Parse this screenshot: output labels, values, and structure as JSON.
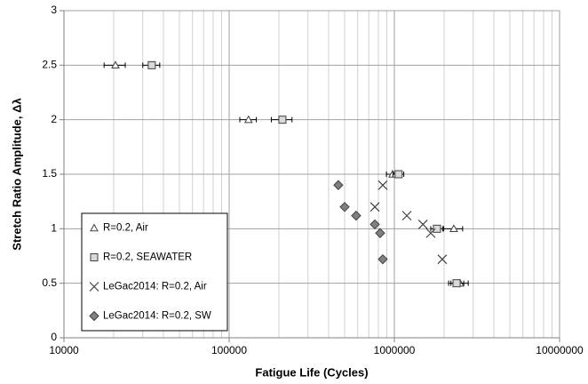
{
  "chart_data": {
    "type": "scatter",
    "x_label": "Fatigue Life (Cycles)",
    "y_label": "Stretch Ratio Amplitude, Δλ",
    "xscale": "log",
    "xlim": [
      10000,
      10000000
    ],
    "xticks": [
      10000,
      100000,
      1000000,
      10000000
    ],
    "ylim": [
      0,
      3
    ],
    "yticks": [
      0,
      0.5,
      1,
      1.5,
      2,
      2.5,
      3
    ],
    "grid": true,
    "minor_grid": true,
    "legend": "lower left",
    "series": [
      {
        "name": "R=0.2, Air",
        "marker": "triangle",
        "color": "#404040",
        "x": [
          20500,
          131000,
          975000,
          2290000,
          2500000
        ],
        "values": [
          2.5,
          2,
          1.5,
          1,
          0.5
        ],
        "xerr": [
          3000,
          15000,
          80000,
          300000,
          300000
        ]
      },
      {
        "name": "R=0.2, SEAWATER",
        "marker": "square",
        "color": "#404040",
        "x": [
          34000,
          210000,
          1060000,
          1810000,
          2380000
        ],
        "values": [
          2.5,
          2,
          1.5,
          1,
          0.5
        ],
        "xerr": [
          4000,
          30000,
          80000,
          150000,
          250000
        ]
      },
      {
        "name": "LeGac2014: R=0.2, Air",
        "marker": "x",
        "color": "#404040",
        "x": [
          851000,
          762000,
          1190000,
          1490000,
          1660000,
          1950000
        ],
        "values": [
          1.4,
          1.2,
          1.12,
          1.04,
          0.96,
          0.72
        ]
      },
      {
        "name": "LeGac2014: R=0.2, SW",
        "marker": "diamond",
        "color": "#808080",
        "x": [
          458000,
          500000,
          587000,
          762000,
          820000,
          851000
        ],
        "values": [
          1.4,
          1.2,
          1.12,
          1.04,
          0.96,
          0.72
        ]
      }
    ]
  }
}
